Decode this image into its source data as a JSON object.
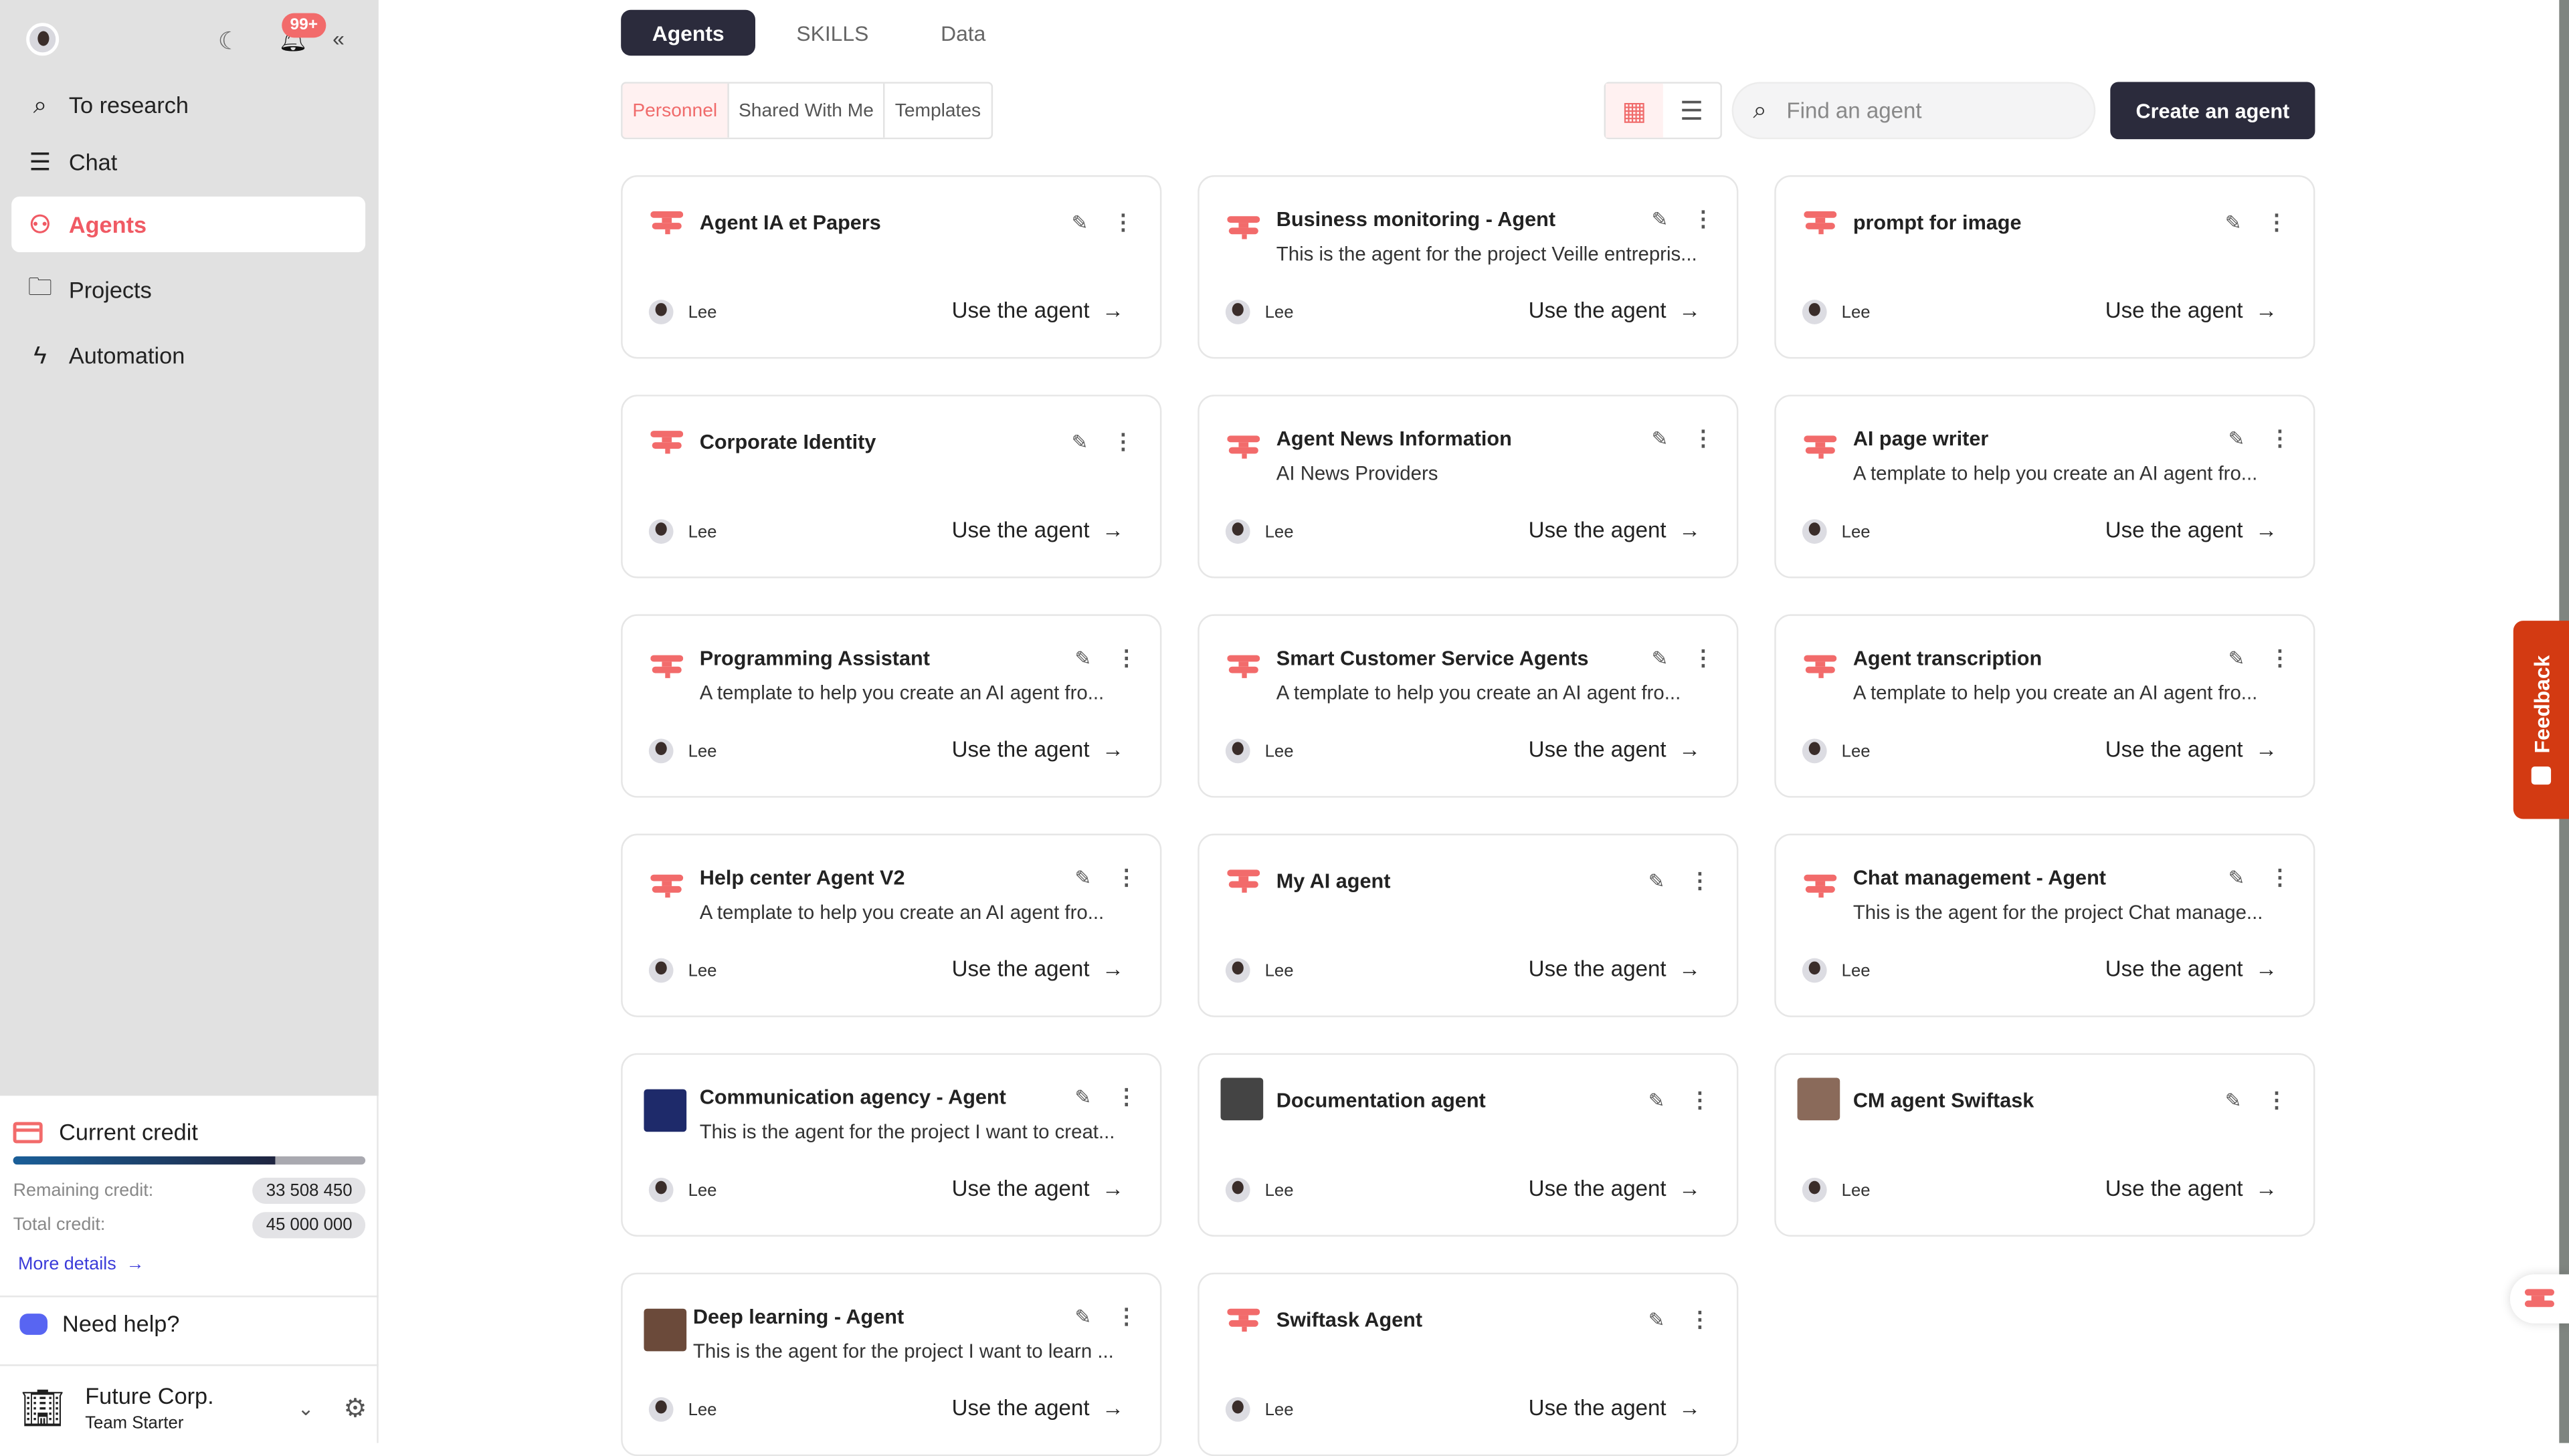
{
  "sidebar": {
    "notification_count": "99+",
    "nav": [
      {
        "label": "To research",
        "icon": "search-icon"
      },
      {
        "label": "Chat",
        "icon": "chat-icon"
      },
      {
        "label": "Agents",
        "icon": "agent-icon",
        "active": true
      },
      {
        "label": "Projects",
        "icon": "folder-icon"
      },
      {
        "label": "Automation",
        "icon": "automation-icon"
      }
    ],
    "credit": {
      "title": "Current credit",
      "remaining_label": "Remaining credit:",
      "remaining_value": "33 508 450",
      "total_label": "Total credit:",
      "total_value": "45 000 000",
      "used_fraction": 0.745,
      "more_details": "More details"
    },
    "help": "Need help?",
    "org": {
      "name": "Future Corp.",
      "plan": "Team Starter"
    }
  },
  "tabs": [
    "Agents",
    "SKILLS",
    "Data"
  ],
  "subtabs": [
    "Personnel",
    "Shared With Me",
    "Templates"
  ],
  "search": {
    "placeholder": "Find an agent"
  },
  "create_button": "Create an agent",
  "feedback": "Feedback",
  "colors": {
    "accent": "#f26b6b",
    "dark": "#2b2b3c",
    "feedback": "#d33a12"
  },
  "cards": [
    {
      "title": "Agent IA et Papers",
      "desc": "",
      "owner": "Lee",
      "action": "Use the agent",
      "icon": "logo"
    },
    {
      "title": "Business monitoring - Agent",
      "desc": "This is the agent for the project Veille entrepris...",
      "owner": "Lee",
      "action": "Use the agent",
      "icon": "logo"
    },
    {
      "title": "prompt for image",
      "desc": "",
      "owner": "Lee",
      "action": "Use the agent",
      "icon": "logo"
    },
    {
      "title": "Corporate Identity",
      "desc": "",
      "owner": "Lee",
      "action": "Use the agent",
      "icon": "logo"
    },
    {
      "title": "Agent News Information",
      "desc": "AI News Providers",
      "owner": "Lee",
      "action": "Use the agent",
      "icon": "logo"
    },
    {
      "title": "AI page writer",
      "desc": "A template to help you create an AI agent fro...",
      "owner": "Lee",
      "action": "Use the agent",
      "icon": "logo"
    },
    {
      "title": "Programming Assistant",
      "desc": "A template to help you create an AI agent fro...",
      "owner": "Lee",
      "action": "Use the agent",
      "icon": "logo"
    },
    {
      "title": "Smart Customer Service Agents",
      "desc": "A template to help you create an AI agent fro...",
      "owner": "Lee",
      "action": "Use the agent",
      "icon": "logo"
    },
    {
      "title": "Agent transcription",
      "desc": "A template to help you create an AI agent fro...",
      "owner": "Lee",
      "action": "Use the agent",
      "icon": "logo"
    },
    {
      "title": "Help center Agent V2",
      "desc": "A template to help you create an AI agent fro...",
      "owner": "Lee",
      "action": "Use the agent",
      "icon": "logo"
    },
    {
      "title": "My AI agent",
      "desc": "",
      "owner": "Lee",
      "action": "Use the agent",
      "icon": "logo"
    },
    {
      "title": "Chat management - Agent",
      "desc": "This is the agent for the project Chat manage...",
      "owner": "Lee",
      "action": "Use the agent",
      "icon": "logo"
    },
    {
      "title": "Communication agency - Agent",
      "desc": "This is the agent for the project I want to creat...",
      "owner": "Lee",
      "action": "Use the agent",
      "icon": "image",
      "color": "#1e2a6a"
    },
    {
      "title": "Documentation agent",
      "desc": "",
      "owner": "Lee",
      "action": "Use the agent",
      "icon": "image",
      "color": "#444444"
    },
    {
      "title": "CM agent Swiftask",
      "desc": "",
      "owner": "Lee",
      "action": "Use the agent",
      "icon": "image",
      "color": "#8a6a5a"
    },
    {
      "title": "Deep learning - Agent",
      "desc": "This is the agent for the project I want to learn ...",
      "owner": "Lee",
      "action": "Use the agent",
      "icon": "image",
      "color": "#6b4a3a"
    },
    {
      "title": "Swiftask Agent",
      "desc": "",
      "owner": "Lee",
      "action": "Use the agent",
      "icon": "logo"
    }
  ]
}
